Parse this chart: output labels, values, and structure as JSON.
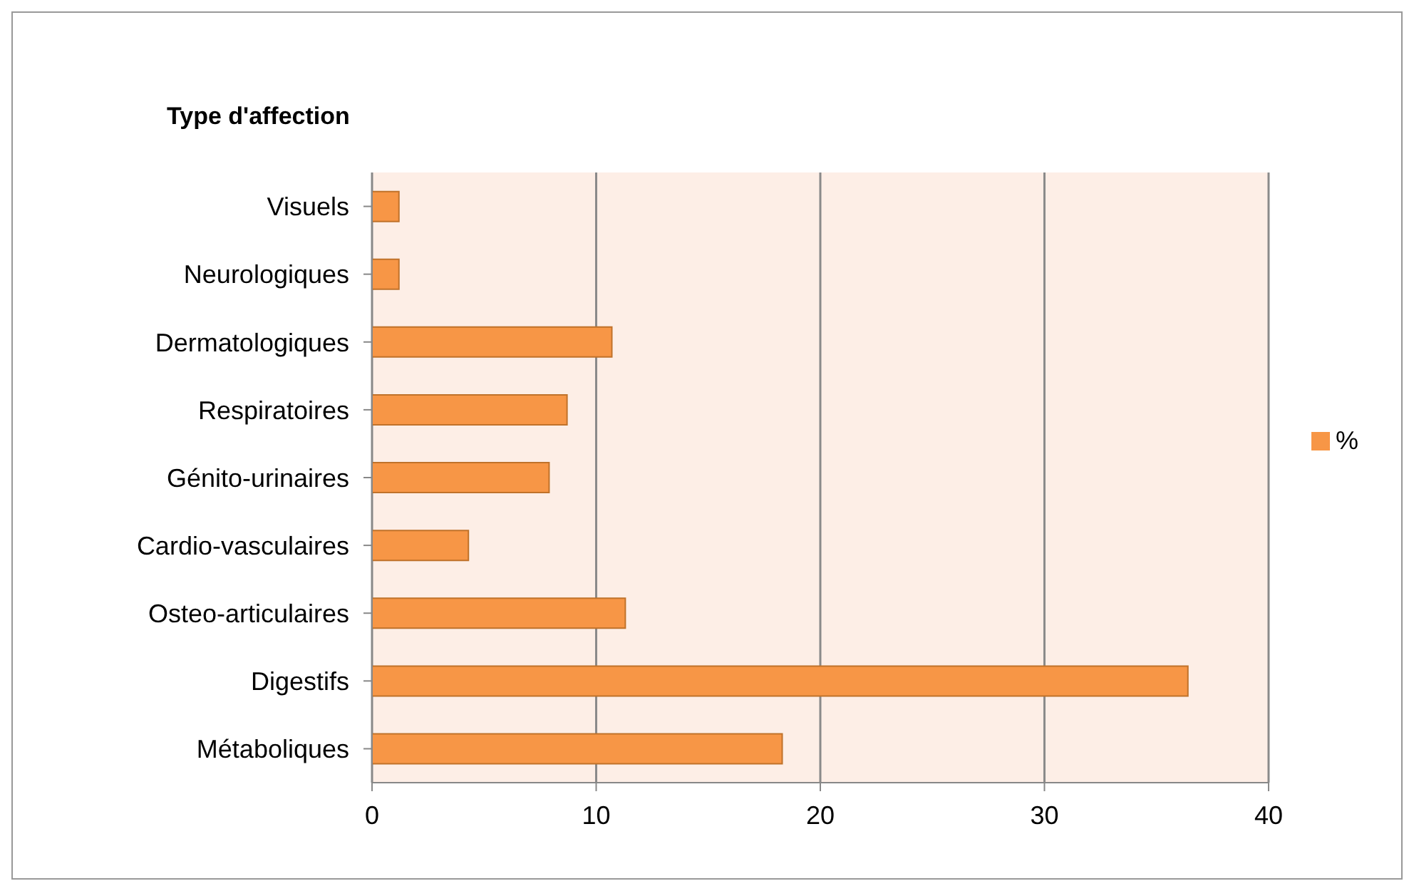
{
  "chart_data": {
    "type": "bar",
    "orientation": "horizontal",
    "ylabel": "Type d'affection",
    "categories": [
      "Visuels",
      "Neurologiques",
      "Dermatologiques",
      "Respiratoires",
      "Génito-urinaires",
      "Cardio-vasculaires",
      "Osteo-articulaires",
      "Digestifs",
      "Métaboliques"
    ],
    "series": [
      {
        "name": "%",
        "color": "#f79646",
        "values": [
          1.2,
          1.2,
          10.7,
          8.7,
          7.9,
          4.3,
          11.3,
          36.4,
          18.3
        ]
      }
    ],
    "xlim": [
      0,
      40
    ],
    "xticks": [
      0,
      10,
      20,
      30,
      40
    ],
    "grid": "x",
    "legend": "right"
  }
}
